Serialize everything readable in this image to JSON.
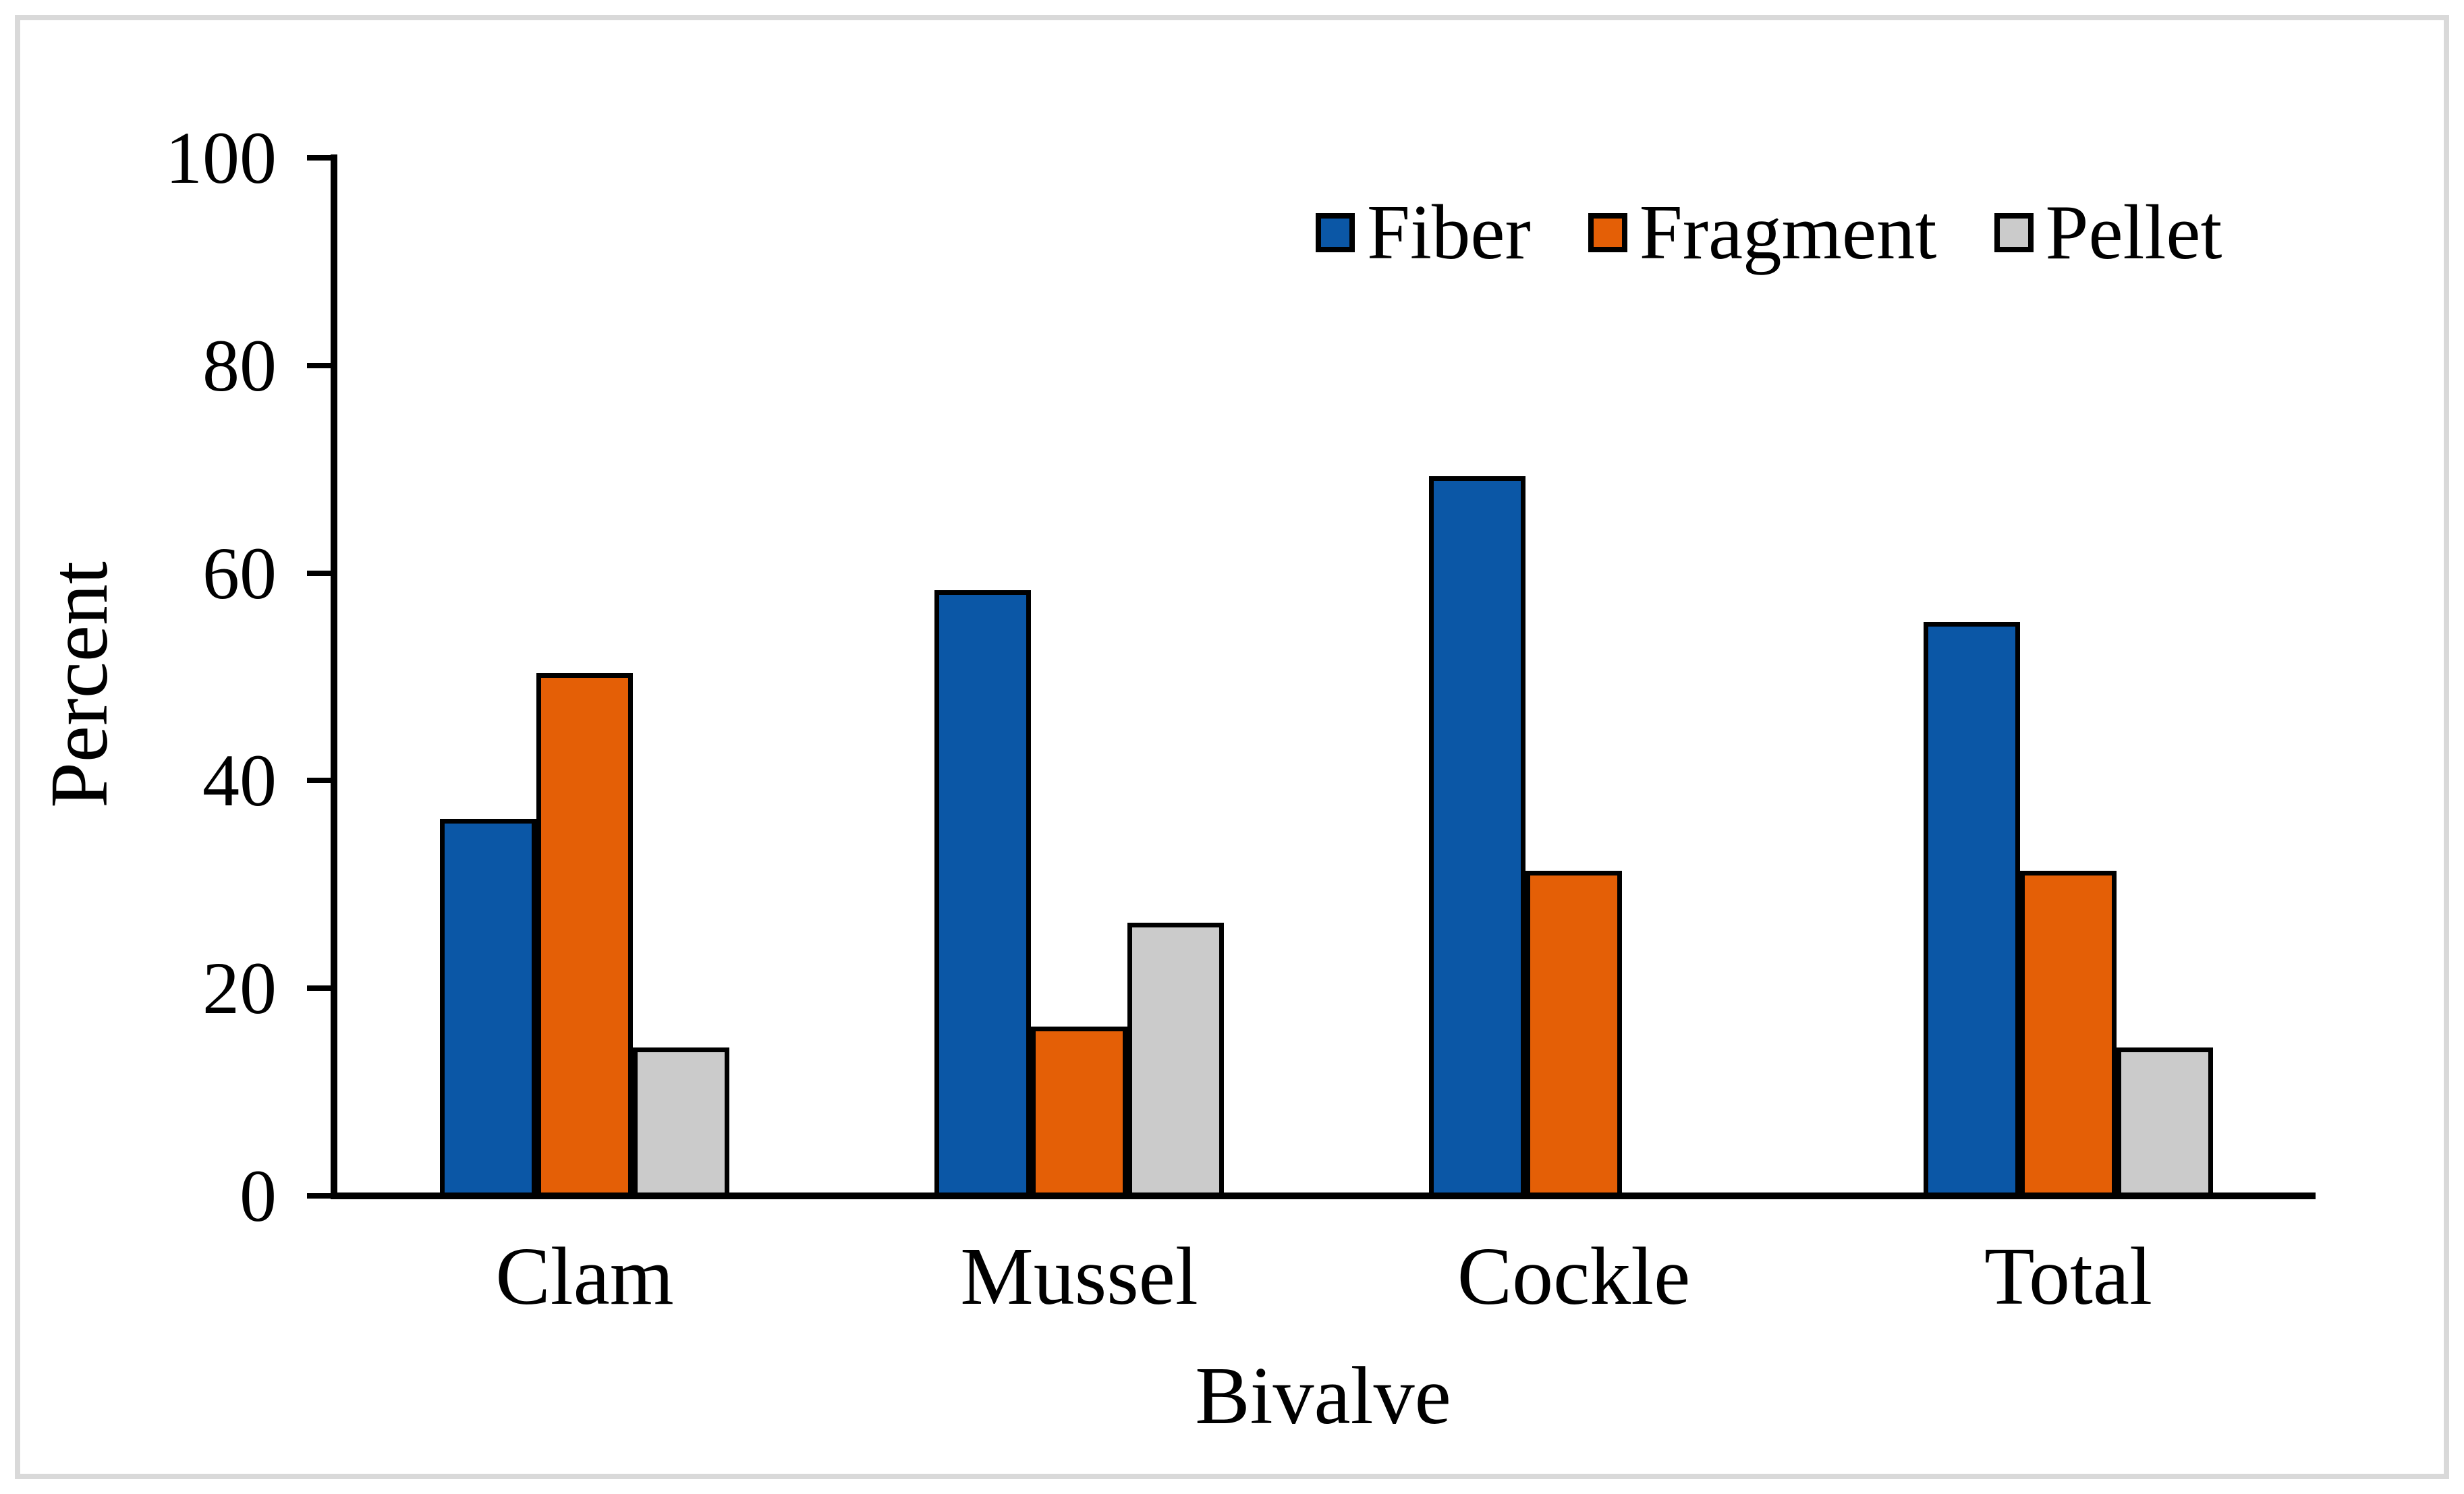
{
  "figure": {
    "background": "#ffffff",
    "frame_color": "#d9d9d9",
    "axis_color": "#000000",
    "text_color": "#000000"
  },
  "chart_data": {
    "type": "bar",
    "title": "",
    "categories": [
      "Clam",
      "Mussel",
      "Cockle",
      "Total"
    ],
    "series": [
      {
        "name": "Fiber",
        "color": "#0b57a6",
        "values": [
          36,
          58,
          69,
          55
        ]
      },
      {
        "name": "Fragment",
        "color": "#e45f06",
        "values": [
          50,
          16,
          31,
          31
        ]
      },
      {
        "name": "Pellet",
        "color": "#cbcbcb",
        "values": [
          14,
          26,
          0,
          14
        ]
      }
    ],
    "xlabel": "Bivalve",
    "ylabel": "Percent",
    "ylim": [
      0,
      100
    ],
    "yticks": [
      0,
      20,
      40,
      60,
      80,
      100
    ],
    "grid": false,
    "legend_position": "top-right",
    "bar_outline_color": "#000000"
  }
}
